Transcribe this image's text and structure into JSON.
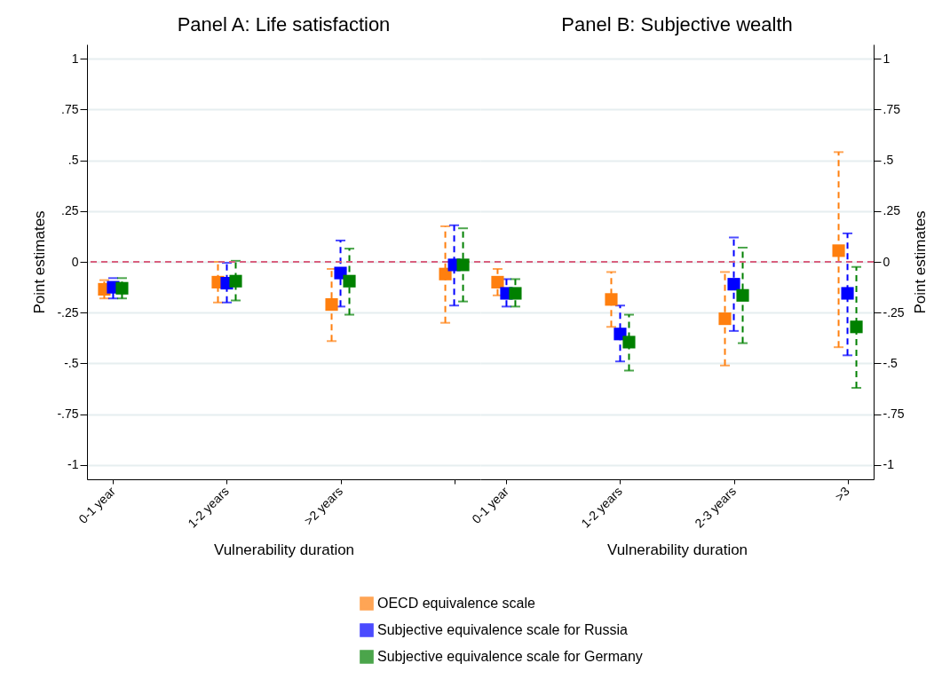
{
  "chart_data": [
    {
      "type": "scatter",
      "title": "Panel A: Life satisfaction",
      "xlabel": "Vulnerability duration",
      "ylabel": "Point estimates",
      "categories": [
        "0-1 year",
        "1-2 years",
        ">2 years",
        null
      ],
      "series": [
        {
          "name": "OECD equivalence scale",
          "color": "#ff7f0e",
          "values": [
            -0.135,
            -0.1,
            -0.21,
            -0.06
          ],
          "errors": [
            [
              -0.18,
              -0.09
            ],
            [
              -0.2,
              0
            ],
            [
              -0.39,
              -0.035
            ],
            [
              -0.3,
              0.175
            ]
          ]
        },
        {
          "name": "Subjective equivalence scale for Russia",
          "color": "#0000ff",
          "values": [
            -0.125,
            -0.105,
            -0.055,
            -0.015
          ],
          "errors": [
            [
              -0.18,
              -0.08
            ],
            [
              -0.2,
              -0.005
            ],
            [
              -0.22,
              0.105
            ],
            [
              -0.215,
              0.18
            ]
          ]
        },
        {
          "name": "Subjective equivalence scale for Germany",
          "color": "#008000",
          "values": [
            -0.13,
            -0.095,
            -0.095,
            -0.015
          ],
          "errors": [
            [
              -0.18,
              -0.08
            ],
            [
              -0.19,
              0.005
            ],
            [
              -0.26,
              0.065
            ],
            [
              -0.195,
              0.165
            ]
          ]
        }
      ],
      "ylim": [
        -1.07,
        1.07
      ],
      "yticks": [
        1,
        {
          "value": 0.75,
          "label": ".75"
        },
        {
          "value": 0.5,
          "label": ".5"
        },
        {
          "value": 0.25,
          "label": ".25"
        },
        0,
        {
          "value": -0.25,
          "label": "-.25"
        },
        {
          "value": -0.5,
          "label": "-.5"
        },
        {
          "value": -0.75,
          "label": "-.75"
        },
        -1
      ],
      "grid": "y",
      "marker": "square",
      "line_style": "dashed",
      "legend": "bottom",
      "ref_lines": [
        {
          "axis": "y",
          "value": 0,
          "color": "#d9607f",
          "line_style": "dashed"
        }
      ]
    },
    {
      "type": "scatter",
      "title": "Panel B: Subjective wealth",
      "xlabel": "Vulnerability duration",
      "ylabel": "Point estimates",
      "categories": [
        "0-1 year",
        "1-2 years",
        "2-3 years",
        ">3"
      ],
      "series": [
        {
          "color": "#ff7f0e",
          "values": [
            -0.1,
            -0.185,
            -0.28,
            0.055
          ],
          "errors": [
            [
              -0.165,
              -0.035
            ],
            [
              -0.32,
              -0.05
            ],
            [
              -0.51,
              -0.05
            ],
            [
              -0.42,
              0.54
            ]
          ]
        },
        {
          "color": "#0000ff",
          "values": [
            -0.155,
            -0.355,
            -0.11,
            -0.155
          ],
          "errors": [
            [
              -0.22,
              -0.085
            ],
            [
              -0.49,
              -0.215
            ],
            [
              -0.34,
              0.12
            ],
            [
              -0.46,
              0.14
            ]
          ]
        },
        {
          "color": "#008000",
          "values": [
            -0.155,
            -0.395,
            -0.165,
            -0.32
          ],
          "errors": [
            [
              -0.22,
              -0.085
            ],
            [
              -0.535,
              -0.26
            ],
            [
              -0.4,
              0.07
            ],
            [
              -0.62,
              -0.025
            ]
          ]
        }
      ],
      "ylim": [
        -1.07,
        1.07
      ],
      "yticks": [
        1,
        {
          "value": 0.75,
          "label": ".75"
        },
        {
          "value": 0.5,
          "label": ".5"
        },
        {
          "value": 0.25,
          "label": ".25"
        },
        0,
        {
          "value": -0.25,
          "label": "-.25"
        },
        {
          "value": -0.5,
          "label": "-.5"
        },
        {
          "value": -0.75,
          "label": "-.75"
        },
        -1
      ],
      "grid": "y",
      "marker": "square",
      "line_style": "dashed",
      "ref_lines": [
        {
          "axis": "y",
          "value": 0,
          "color": "#d9607f",
          "line_style": "dashed"
        }
      ]
    }
  ]
}
